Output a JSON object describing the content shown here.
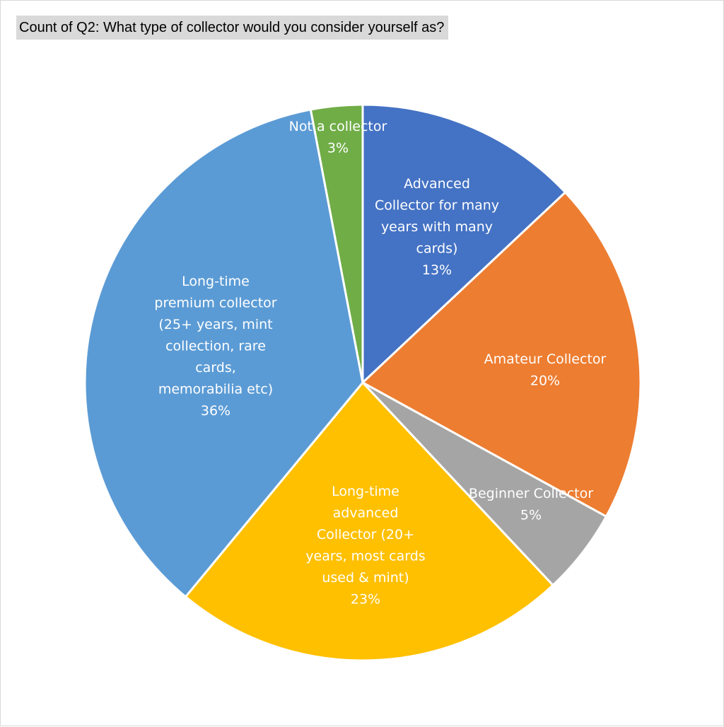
{
  "chart_data": {
    "type": "pie",
    "title": "Count of Q2: What type of collector would you consider yourself as?",
    "slices": [
      {
        "label_lines": [
          "Advanced",
          "Collector for many",
          "years with many",
          "cards)"
        ],
        "percent_label": "13%",
        "value": 13,
        "color": "#4472C4"
      },
      {
        "label_lines": [
          "Amateur Collector"
        ],
        "percent_label": "20%",
        "value": 20,
        "color": "#ED7D31"
      },
      {
        "label_lines": [
          "Beginner Collector"
        ],
        "percent_label": "5%",
        "value": 5,
        "color": "#A5A5A5"
      },
      {
        "label_lines": [
          "Long-time",
          "advanced",
          "Collector (20+",
          "years, most cards",
          "used & mint)"
        ],
        "percent_label": "23%",
        "value": 23,
        "color": "#FFC000"
      },
      {
        "label_lines": [
          "Long-time",
          "premium collector",
          "(25+ years, mint",
          "collection, rare",
          "cards,",
          "memorabilia etc)"
        ],
        "percent_label": "36%",
        "value": 36,
        "color": "#5B9BD5"
      },
      {
        "label_lines": [
          "Not a collector"
        ],
        "percent_label": "3%",
        "value": 3,
        "color": "#70AD47"
      }
    ],
    "legend": "none"
  }
}
